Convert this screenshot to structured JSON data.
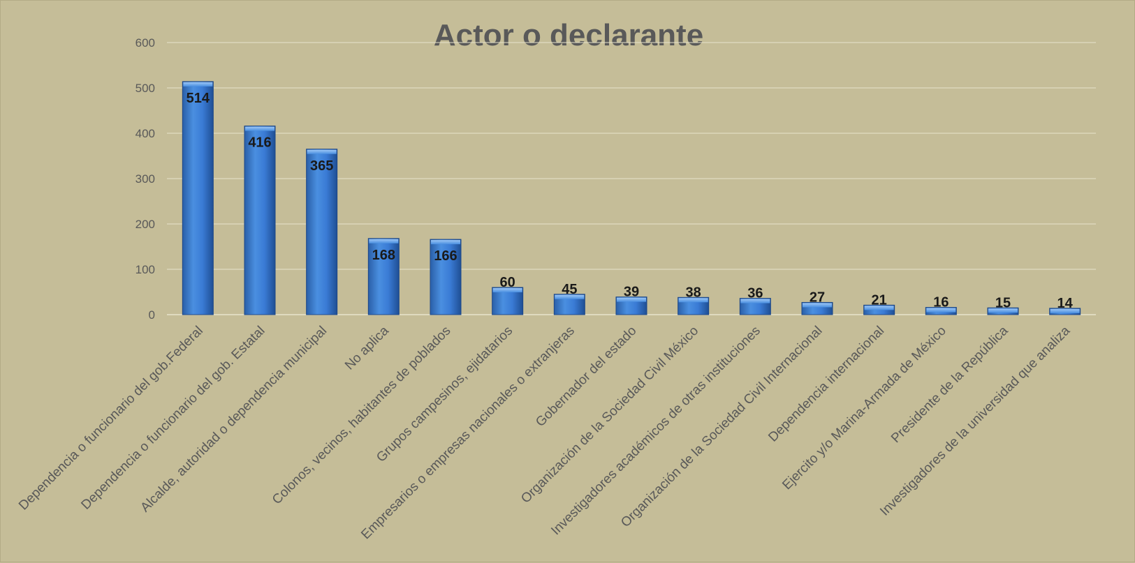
{
  "chart_data": {
    "type": "bar",
    "title": "Actor o declarante",
    "xlabel": "",
    "ylabel": "",
    "ylim": [
      0,
      600
    ],
    "yticks": [
      0,
      100,
      200,
      300,
      400,
      500,
      600
    ],
    "grid": true,
    "legend": "none",
    "bar_color": "#3a7bd5",
    "categories": [
      "Dependencia o funcionario del gob.Federal",
      "Dependencia o funcionario del gob. Estatal",
      "Alcalde, autoridad o dependencia municipal",
      "No aplica",
      "Colonos, vecinos, habitantes de poblados",
      "Grupos campesinos, ejidatarios",
      "Empresarios o empresas nacionales o extranjeras",
      "Gobernador del estado",
      "Organización de la Sociedad Civil México",
      "Investigadores académicos de otras instituciones",
      "Organización de la Sociedad Civil Internacional",
      "Dependencia internacional",
      "Ejercito y/o Marina-Armada de México",
      "Presidente de la República",
      "Investigadores de la universidad que analiza"
    ],
    "values": [
      514,
      416,
      365,
      168,
      166,
      60,
      45,
      39,
      38,
      36,
      27,
      21,
      16,
      15,
      14
    ]
  }
}
